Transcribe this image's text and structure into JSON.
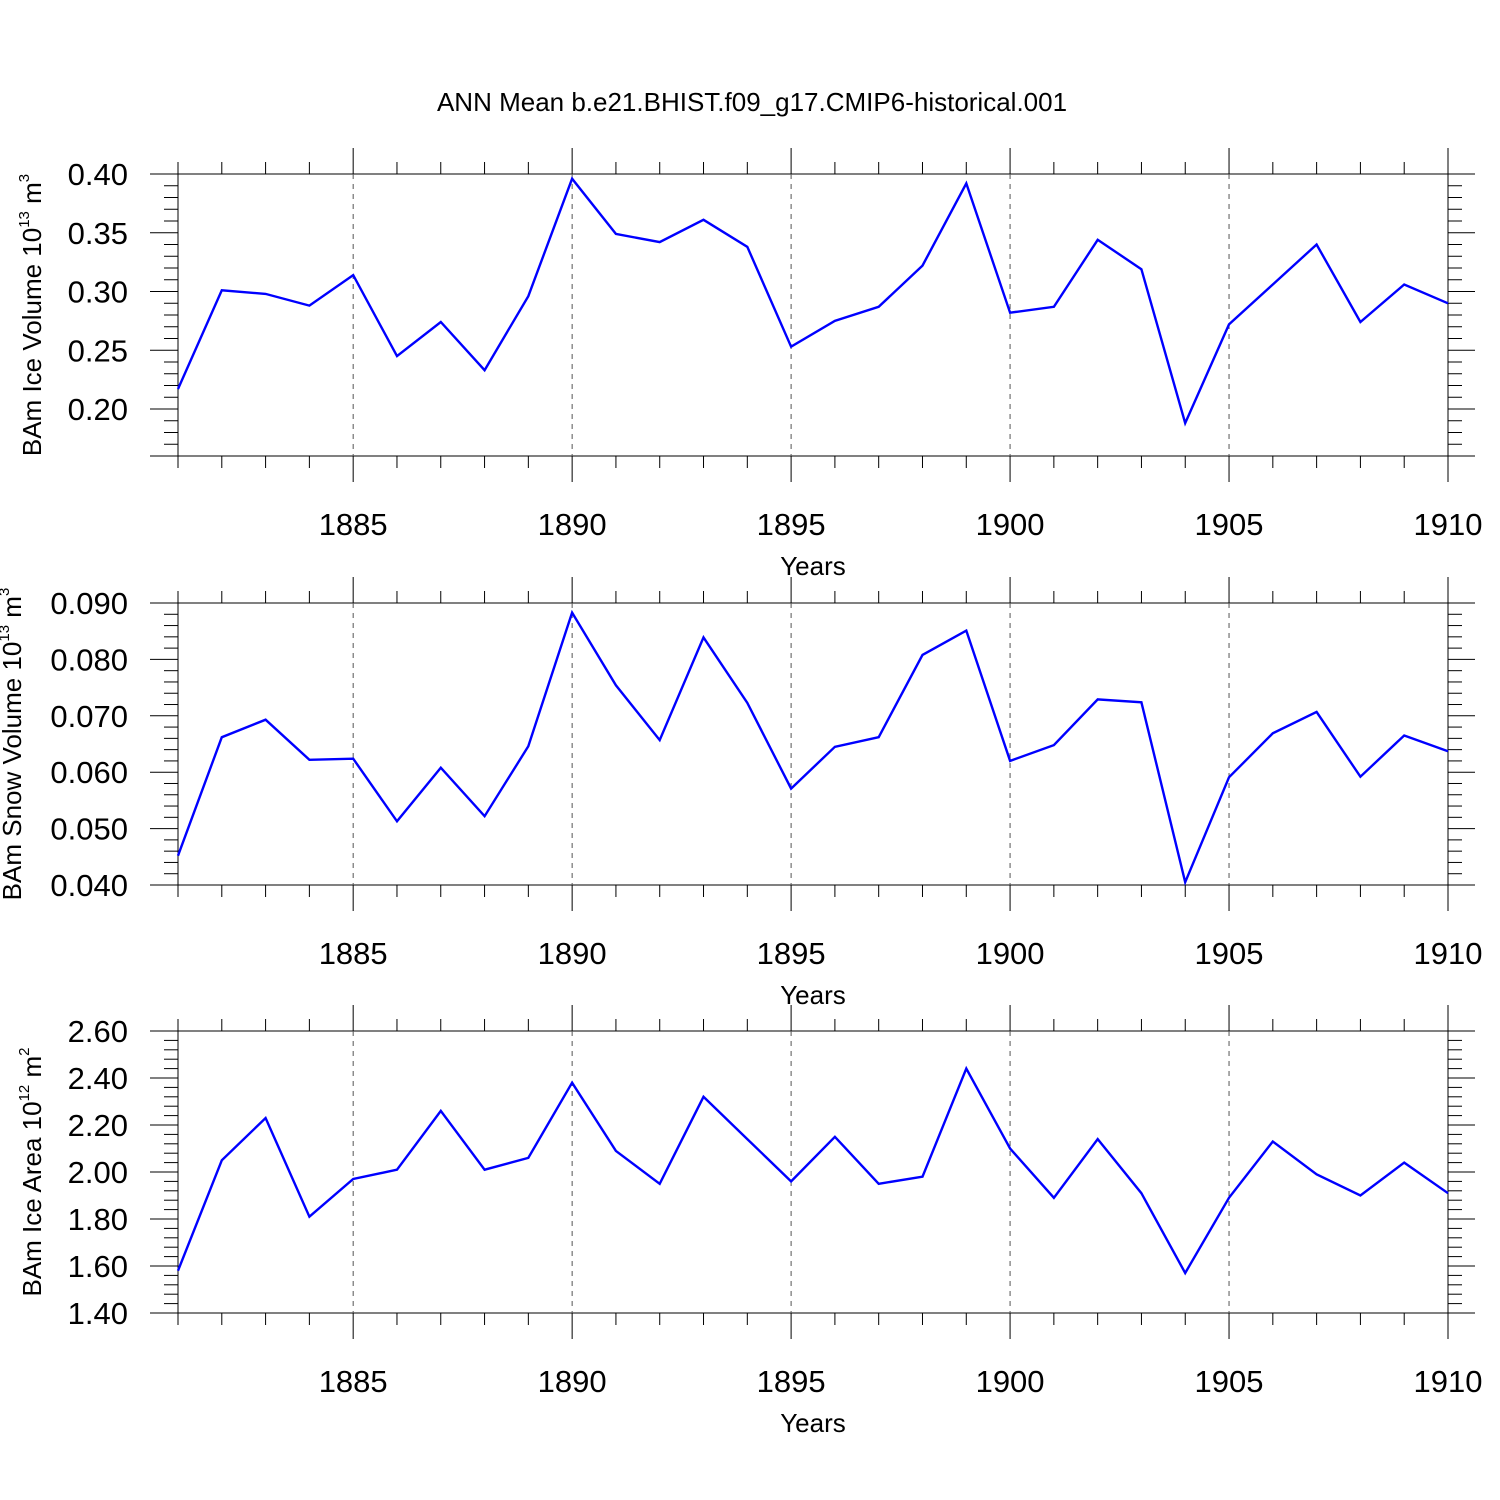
{
  "title": "ANN Mean b.e21.BHIST.f09_g17.CMIP6-historical.001",
  "chart_data": [
    {
      "type": "line",
      "ylabel": {
        "text": "BAm Ice Volume 10",
        "sup1": "13",
        "unit": " m",
        "sup2": "3"
      },
      "xlabel": "Years",
      "x": [
        1881,
        1882,
        1883,
        1884,
        1885,
        1886,
        1887,
        1888,
        1889,
        1890,
        1891,
        1892,
        1893,
        1894,
        1895,
        1896,
        1897,
        1898,
        1899,
        1900,
        1901,
        1902,
        1903,
        1904,
        1905,
        1906,
        1907,
        1908,
        1909,
        1910
      ],
      "values": [
        0.217,
        0.301,
        0.298,
        0.288,
        0.314,
        0.245,
        0.274,
        0.233,
        0.296,
        0.396,
        0.349,
        0.342,
        0.361,
        0.338,
        0.253,
        0.275,
        0.287,
        0.322,
        0.392,
        0.282,
        0.287,
        0.344,
        0.319,
        0.188,
        0.272,
        0.306,
        0.34,
        0.274,
        0.306,
        0.29
      ],
      "xlim": [
        1881,
        1910
      ],
      "ylim": [
        0.16,
        0.4
      ],
      "yticks": [
        0.2,
        0.25,
        0.3,
        0.35,
        0.4
      ],
      "ytick_labels": [
        "0.20",
        "0.25",
        "0.30",
        "0.35",
        "0.40"
      ],
      "ytick_minor_step": 0.01,
      "xticks": [
        1885,
        1890,
        1895,
        1900,
        1905,
        1910
      ],
      "xtick_labels": [
        "1885",
        "1890",
        "1895",
        "1900",
        "1905",
        "1910"
      ],
      "grid": "dashed vertical at major x ticks",
      "color": "#0000ff"
    },
    {
      "type": "line",
      "ylabel": {
        "text": "BAm Snow Volume 10",
        "sup1": "13",
        "unit": " m",
        "sup2": "3"
      },
      "xlabel": "Years",
      "x": [
        1881,
        1882,
        1883,
        1884,
        1885,
        1886,
        1887,
        1888,
        1889,
        1890,
        1891,
        1892,
        1893,
        1894,
        1895,
        1896,
        1897,
        1898,
        1899,
        1900,
        1901,
        1902,
        1903,
        1904,
        1905,
        1906,
        1907,
        1908,
        1909,
        1910
      ],
      "values": [
        0.0452,
        0.0662,
        0.0693,
        0.0622,
        0.0624,
        0.0513,
        0.0608,
        0.0522,
        0.0646,
        0.0883,
        0.0754,
        0.0657,
        0.0839,
        0.0723,
        0.0571,
        0.0645,
        0.0662,
        0.0808,
        0.0851,
        0.062,
        0.0648,
        0.0729,
        0.0724,
        0.0405,
        0.0591,
        0.0669,
        0.0707,
        0.0592,
        0.0665,
        0.0637
      ],
      "xlim": [
        1881,
        1910
      ],
      "ylim": [
        0.04,
        0.09
      ],
      "yticks": [
        0.04,
        0.05,
        0.06,
        0.07,
        0.08,
        0.09
      ],
      "ytick_labels": [
        "0.040",
        "0.050",
        "0.060",
        "0.070",
        "0.080",
        "0.090"
      ],
      "ytick_minor_step": 0.002,
      "xticks": [
        1885,
        1890,
        1895,
        1900,
        1905,
        1910
      ],
      "xtick_labels": [
        "1885",
        "1890",
        "1895",
        "1900",
        "1905",
        "1910"
      ],
      "grid": "dashed vertical at major x ticks",
      "color": "#0000ff"
    },
    {
      "type": "line",
      "ylabel": {
        "text": "BAm Ice Area 10",
        "sup1": "12",
        "unit": " m",
        "sup2": "2"
      },
      "xlabel": "Years",
      "x": [
        1881,
        1882,
        1883,
        1884,
        1885,
        1886,
        1887,
        1888,
        1889,
        1890,
        1891,
        1892,
        1893,
        1894,
        1895,
        1896,
        1897,
        1898,
        1899,
        1900,
        1901,
        1902,
        1903,
        1904,
        1905,
        1906,
        1907,
        1908,
        1909,
        1910
      ],
      "values": [
        1.58,
        2.05,
        2.23,
        1.81,
        1.97,
        2.01,
        2.26,
        2.01,
        2.06,
        2.38,
        2.09,
        1.95,
        2.32,
        2.14,
        1.96,
        2.15,
        1.95,
        1.98,
        2.44,
        2.1,
        1.89,
        2.14,
        1.91,
        1.57,
        1.89,
        2.13,
        1.99,
        1.9,
        2.04,
        1.91
      ],
      "xlim": [
        1881,
        1910
      ],
      "ylim": [
        1.4,
        2.6
      ],
      "yticks": [
        1.4,
        1.6,
        1.8,
        2.0,
        2.2,
        2.4,
        2.6
      ],
      "ytick_labels": [
        "1.40",
        "1.60",
        "1.80",
        "2.00",
        "2.20",
        "2.40",
        "2.60"
      ],
      "ytick_minor_step": 0.04,
      "xticks": [
        1885,
        1890,
        1895,
        1900,
        1905,
        1910
      ],
      "xtick_labels": [
        "1885",
        "1890",
        "1895",
        "1900",
        "1905",
        "1910"
      ],
      "grid": "dashed vertical at major x ticks",
      "color": "#0000ff"
    }
  ]
}
